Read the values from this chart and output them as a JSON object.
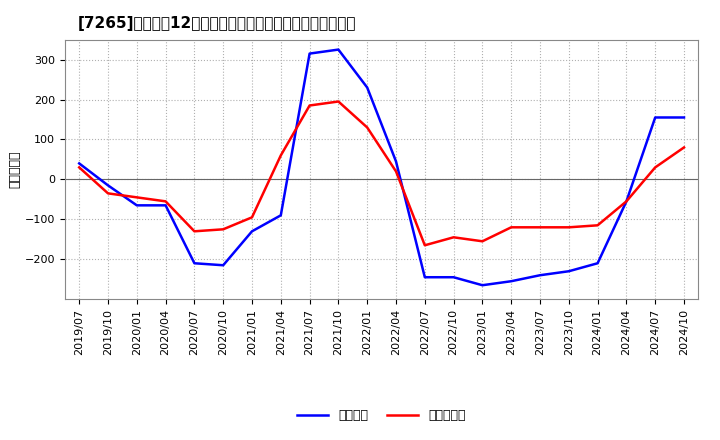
{
  "title": "[7265]　利益の12か月移動合計の対前年同期増減額の推移",
  "ylabel": "（百万円）",
  "legend_labels": [
    "経常利益",
    "当期純利益"
  ],
  "line_colors": [
    "#0000ff",
    "#ff0000"
  ],
  "background_color": "#ffffff",
  "plot_bg_color": "#ffffff",
  "grid_color": "#b0b0b0",
  "ylim": [
    -300,
    350
  ],
  "yticks": [
    -200,
    -100,
    0,
    100,
    200,
    300
  ],
  "values_keijo": [
    40,
    -15,
    -65,
    -65,
    -210,
    -215,
    -130,
    -90,
    315,
    325,
    230,
    45,
    -245,
    -245,
    -265,
    -255,
    -240,
    -230,
    -210,
    -55,
    155,
    155
  ],
  "values_touki": [
    30,
    -35,
    -45,
    -55,
    -130,
    -125,
    -95,
    60,
    185,
    195,
    130,
    20,
    -165,
    -145,
    -155,
    -120,
    -120,
    -120,
    -115,
    -55,
    30,
    80
  ],
  "xtick_labels": [
    "2019/07",
    "2019/10",
    "2020/01",
    "2020/04",
    "2020/07",
    "2020/10",
    "2021/01",
    "2021/04",
    "2021/07",
    "2021/10",
    "2022/01",
    "2022/04",
    "2022/07",
    "2022/10",
    "2023/01",
    "2023/04",
    "2023/07",
    "2023/10",
    "2024/01",
    "2024/04",
    "2024/07",
    "2024/10"
  ],
  "title_fontsize": 11,
  "tick_fontsize": 8,
  "ylabel_fontsize": 9,
  "legend_fontsize": 9,
  "linewidth": 1.8
}
